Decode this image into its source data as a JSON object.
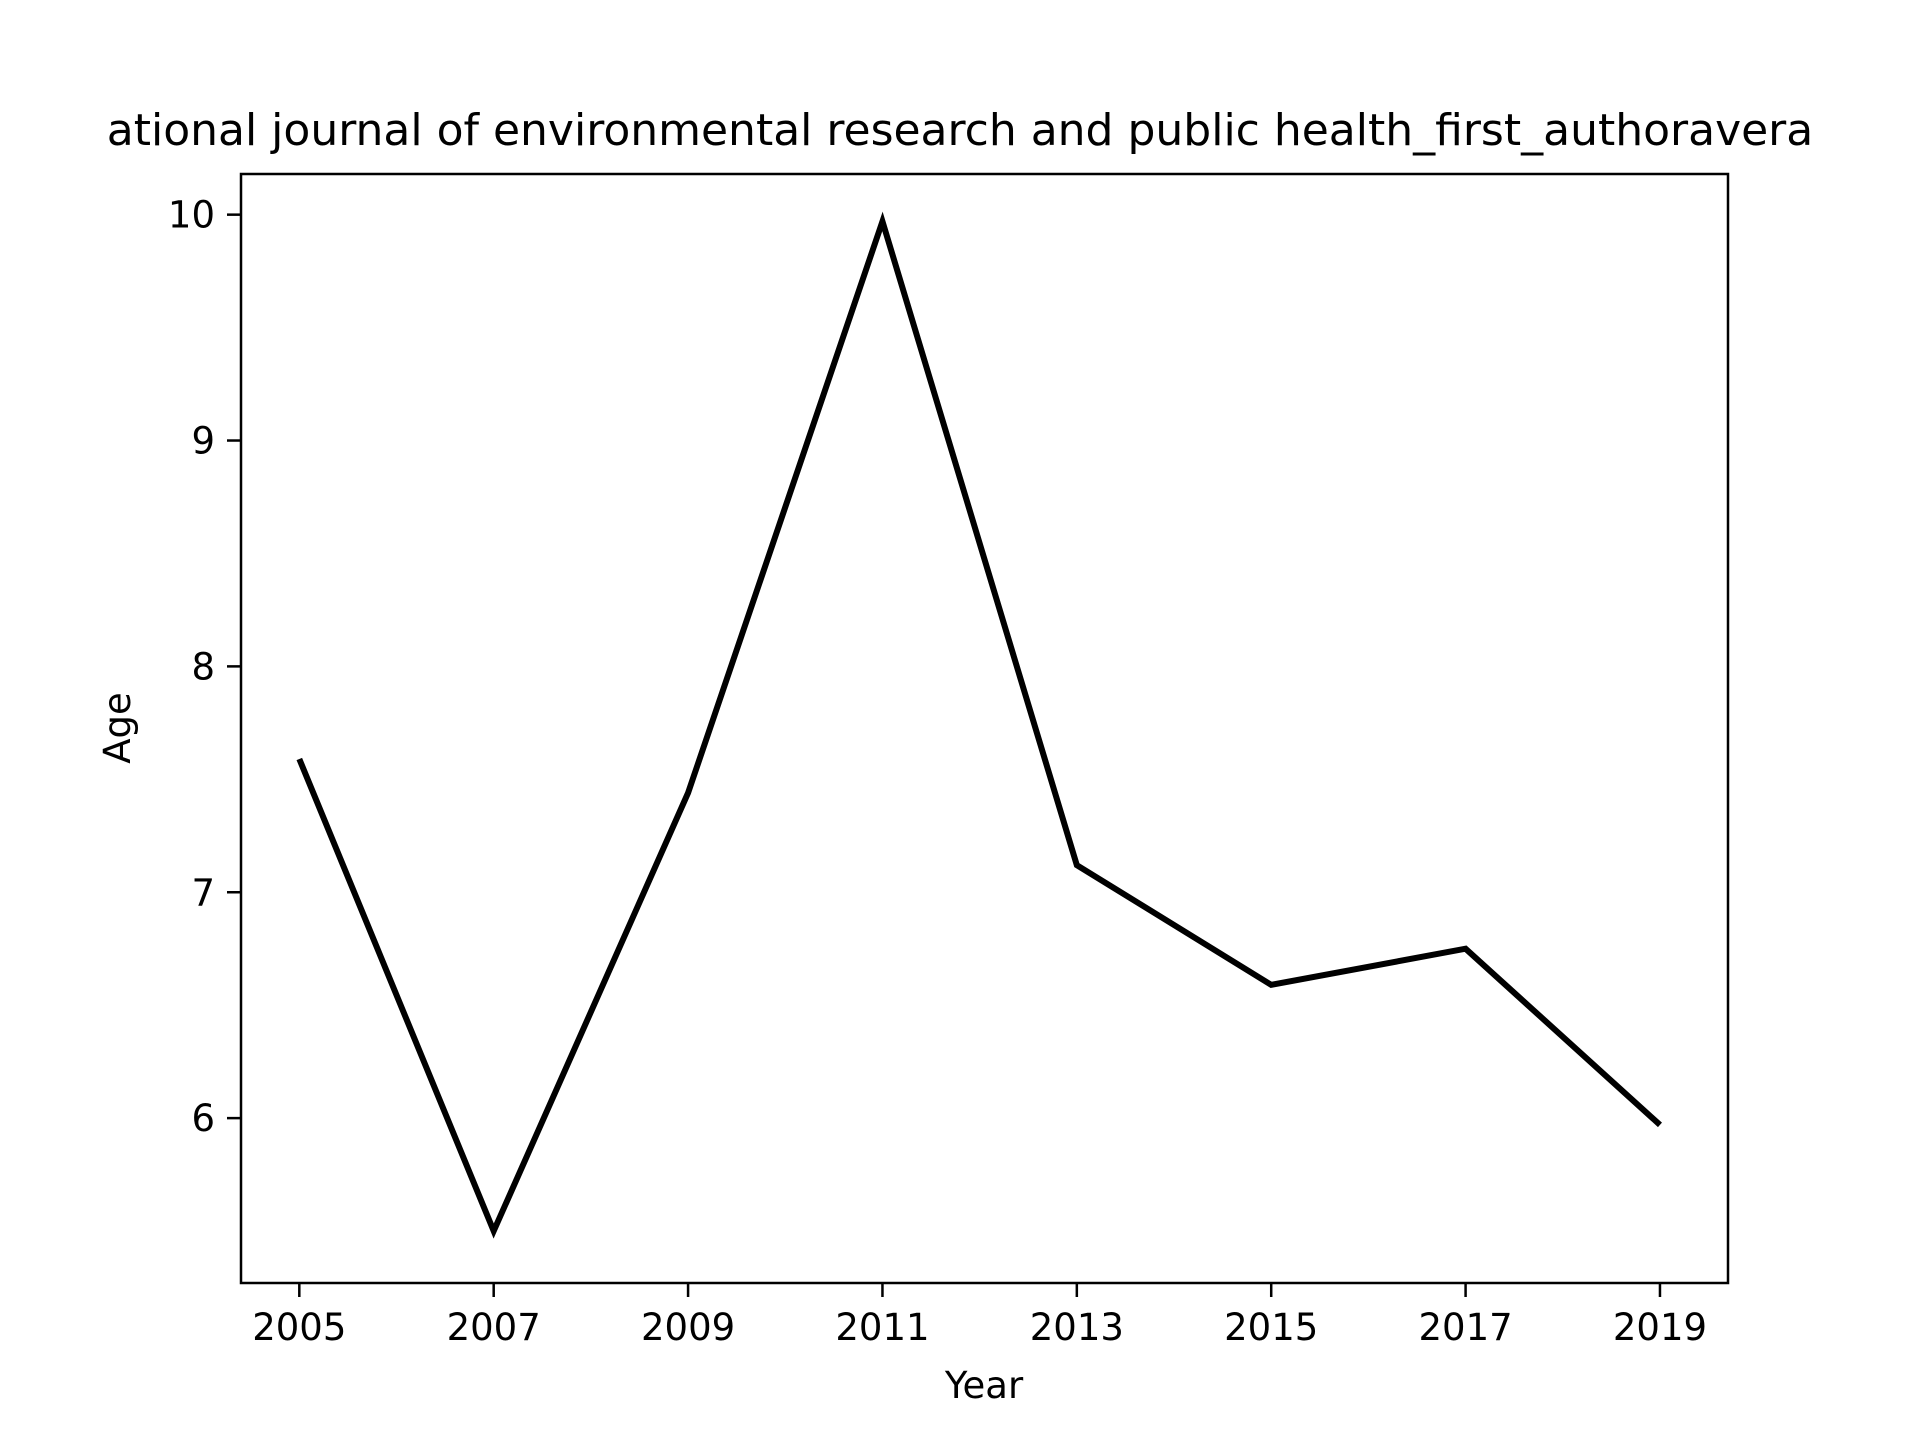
{
  "chart_data": {
    "type": "line",
    "title": "ational journal of environmental research and public health_first_authoravera",
    "xlabel": "Year",
    "ylabel": "Age",
    "x": [
      2005,
      2007,
      2009,
      2011,
      2013,
      2015,
      2017,
      2019
    ],
    "series": [
      {
        "values": [
          7.59,
          5.5,
          7.44,
          9.97,
          7.12,
          6.59,
          6.75,
          5.97
        ]
      }
    ],
    "xticks": [
      2005,
      2007,
      2009,
      2011,
      2013,
      2015,
      2017,
      2019
    ],
    "yticks": [
      6,
      7,
      8,
      9,
      10
    ],
    "xlim": [
      2004.4,
      2019.7
    ],
    "ylim": [
      5.27,
      10.18
    ],
    "grid": false,
    "legend": "none",
    "line_color": "#000000"
  }
}
